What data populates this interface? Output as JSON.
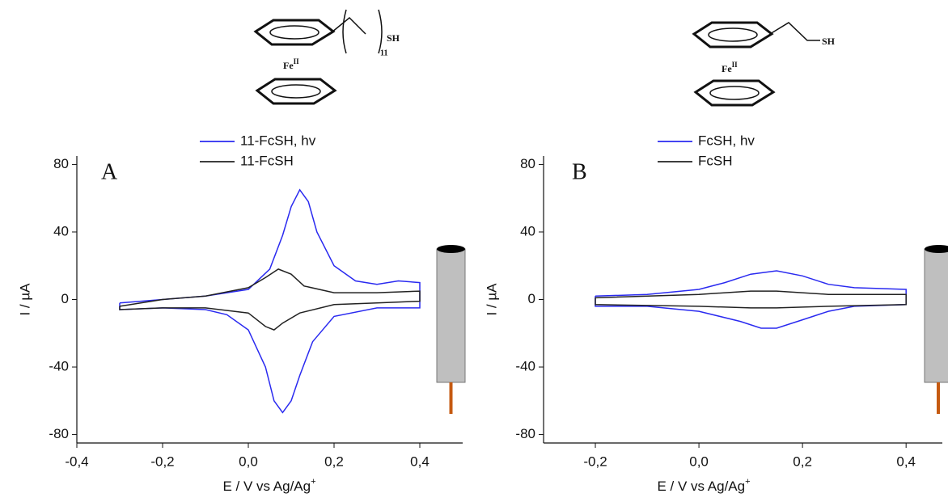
{
  "chart_data": [
    {
      "type": "line",
      "panel_label": "A",
      "xlabel": {
        "text": "E / V vs Ag/Ag",
        "superscript": "+"
      },
      "ylabel": "I / µA",
      "xlim": [
        -0.4,
        0.5
      ],
      "ylim": [
        -85,
        85
      ],
      "xticks": [
        {
          "value": -0.4,
          "label": "-0,4"
        },
        {
          "value": -0.2,
          "label": "-0,2"
        },
        {
          "value": 0,
          "label": "0,0"
        },
        {
          "value": 0.2,
          "label": "0,2"
        },
        {
          "value": 0.4,
          "label": "0,4"
        }
      ],
      "yticks": [
        -80,
        -40,
        0,
        40,
        80
      ],
      "structure": {
        "metal": "Fe",
        "metal_superscript": "II",
        "thiol": "SH",
        "chain_count": 11
      },
      "series": [
        {
          "name": "11-FcSH, hv",
          "color": "#2a2af0",
          "x": [
            -0.3,
            -0.2,
            -0.1,
            0.0,
            0.05,
            0.08,
            0.1,
            0.12,
            0.14,
            0.16,
            0.2,
            0.25,
            0.3,
            0.35,
            0.4,
            0.4,
            0.3,
            0.2,
            0.15,
            0.12,
            0.1,
            0.08,
            0.06,
            0.04,
            0.0,
            -0.05,
            -0.1,
            -0.2,
            -0.3,
            -0.3
          ],
          "values": [
            -2,
            0,
            2,
            6,
            18,
            38,
            55,
            65,
            58,
            40,
            20,
            11,
            9,
            11,
            10,
            -5,
            -5,
            -10,
            -25,
            -45,
            -60,
            -67,
            -60,
            -40,
            -18,
            -9,
            -6,
            -5,
            -6,
            -2
          ]
        },
        {
          "name": "11-FcSH",
          "color": "#222222",
          "x": [
            -0.3,
            -0.2,
            -0.1,
            0.0,
            0.04,
            0.07,
            0.1,
            0.13,
            0.2,
            0.3,
            0.4,
            0.4,
            0.3,
            0.2,
            0.12,
            0.08,
            0.06,
            0.04,
            0.0,
            -0.1,
            -0.2,
            -0.3,
            -0.3
          ],
          "values": [
            -4,
            0,
            2,
            7,
            13,
            18,
            15,
            8,
            4,
            4,
            5,
            -1,
            -2,
            -3,
            -8,
            -14,
            -18,
            -16,
            -8,
            -5,
            -5,
            -6,
            -4
          ]
        }
      ]
    },
    {
      "type": "line",
      "panel_label": "B",
      "xlabel": {
        "text": "E / V vs Ag/Ag",
        "superscript": "+"
      },
      "ylabel": "I / µA",
      "xlim": [
        -0.3,
        0.47
      ],
      "ylim": [
        -85,
        85
      ],
      "xticks": [
        {
          "value": -0.2,
          "label": "-0,2"
        },
        {
          "value": 0,
          "label": "0,0"
        },
        {
          "value": 0.2,
          "label": "0,2"
        },
        {
          "value": 0.4,
          "label": "0,4"
        }
      ],
      "yticks": [
        -80,
        -40,
        0,
        40,
        80
      ],
      "structure": {
        "metal": "Fe",
        "metal_superscript": "II",
        "thiol": "SH"
      },
      "series": [
        {
          "name": "FcSH, hv",
          "color": "#2a2af0",
          "x": [
            -0.2,
            -0.1,
            0.0,
            0.05,
            0.1,
            0.15,
            0.2,
            0.25,
            0.3,
            0.4,
            0.4,
            0.3,
            0.25,
            0.2,
            0.15,
            0.12,
            0.08,
            0.0,
            -0.1,
            -0.2,
            -0.2
          ],
          "values": [
            2,
            3,
            6,
            10,
            15,
            17,
            14,
            9,
            7,
            6,
            -3,
            -4,
            -7,
            -12,
            -17,
            -17,
            -13,
            -7,
            -4,
            -4,
            2
          ]
        },
        {
          "name": "FcSH",
          "color": "#222222",
          "x": [
            -0.2,
            0.0,
            0.1,
            0.15,
            0.25,
            0.4,
            0.4,
            0.25,
            0.15,
            0.1,
            0.0,
            -0.2,
            -0.2
          ],
          "values": [
            1,
            3,
            5,
            5,
            3,
            3,
            -3,
            -4,
            -5,
            -5,
            -4,
            -3,
            1
          ]
        }
      ]
    }
  ]
}
